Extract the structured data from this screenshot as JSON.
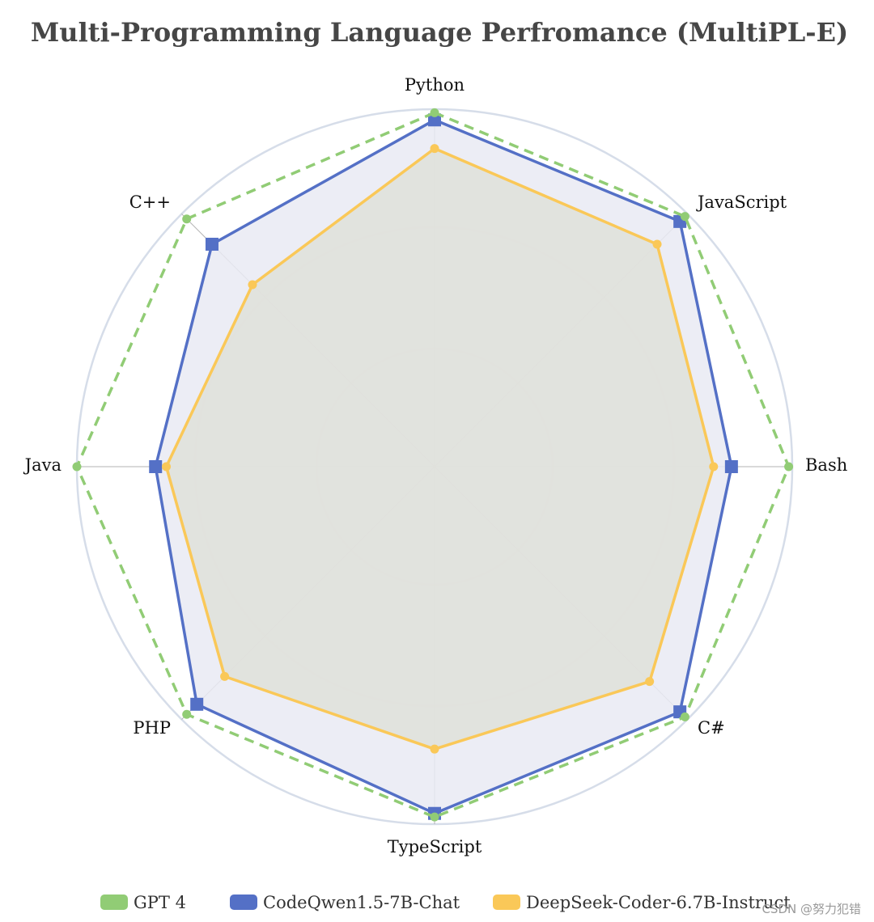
{
  "chart_data": {
    "type": "radar",
    "title": "Multi-Programming Language Perfromance (MultiPL-E)",
    "axes": [
      "Python",
      "JavaScript",
      "Bash",
      "C#",
      "TypeScript",
      "PHP",
      "Java",
      "C++"
    ],
    "rmax": 1.0,
    "rings": [
      0.33,
      0.67,
      1.0
    ],
    "grid": true,
    "legend_position": "bottom",
    "series": [
      {
        "name": "GPT 4",
        "values": [
          0.99,
          0.99,
          0.99,
          0.99,
          0.98,
          0.98,
          1.0,
          0.98
        ],
        "color": "#91cc75",
        "line_style": "dashed",
        "marker": "circle",
        "filled": false
      },
      {
        "name": "CodeQwen1.5-7B-Chat",
        "values": [
          0.97,
          0.97,
          0.83,
          0.97,
          0.97,
          0.94,
          0.78,
          0.88
        ],
        "color": "#5470c6",
        "line_style": "solid",
        "marker": "square",
        "filled": true,
        "fill_color": "#e9eaf3"
      },
      {
        "name": "DeepSeek-Coder-6.7B-Instruct",
        "values": [
          0.89,
          0.88,
          0.78,
          0.85,
          0.79,
          0.83,
          0.75,
          0.72
        ],
        "color": "#fac858",
        "line_style": "solid",
        "marker": "circle",
        "filled": true,
        "fill_color": "#dfe0d9"
      }
    ]
  },
  "watermark": "CSDN @努力犯错"
}
